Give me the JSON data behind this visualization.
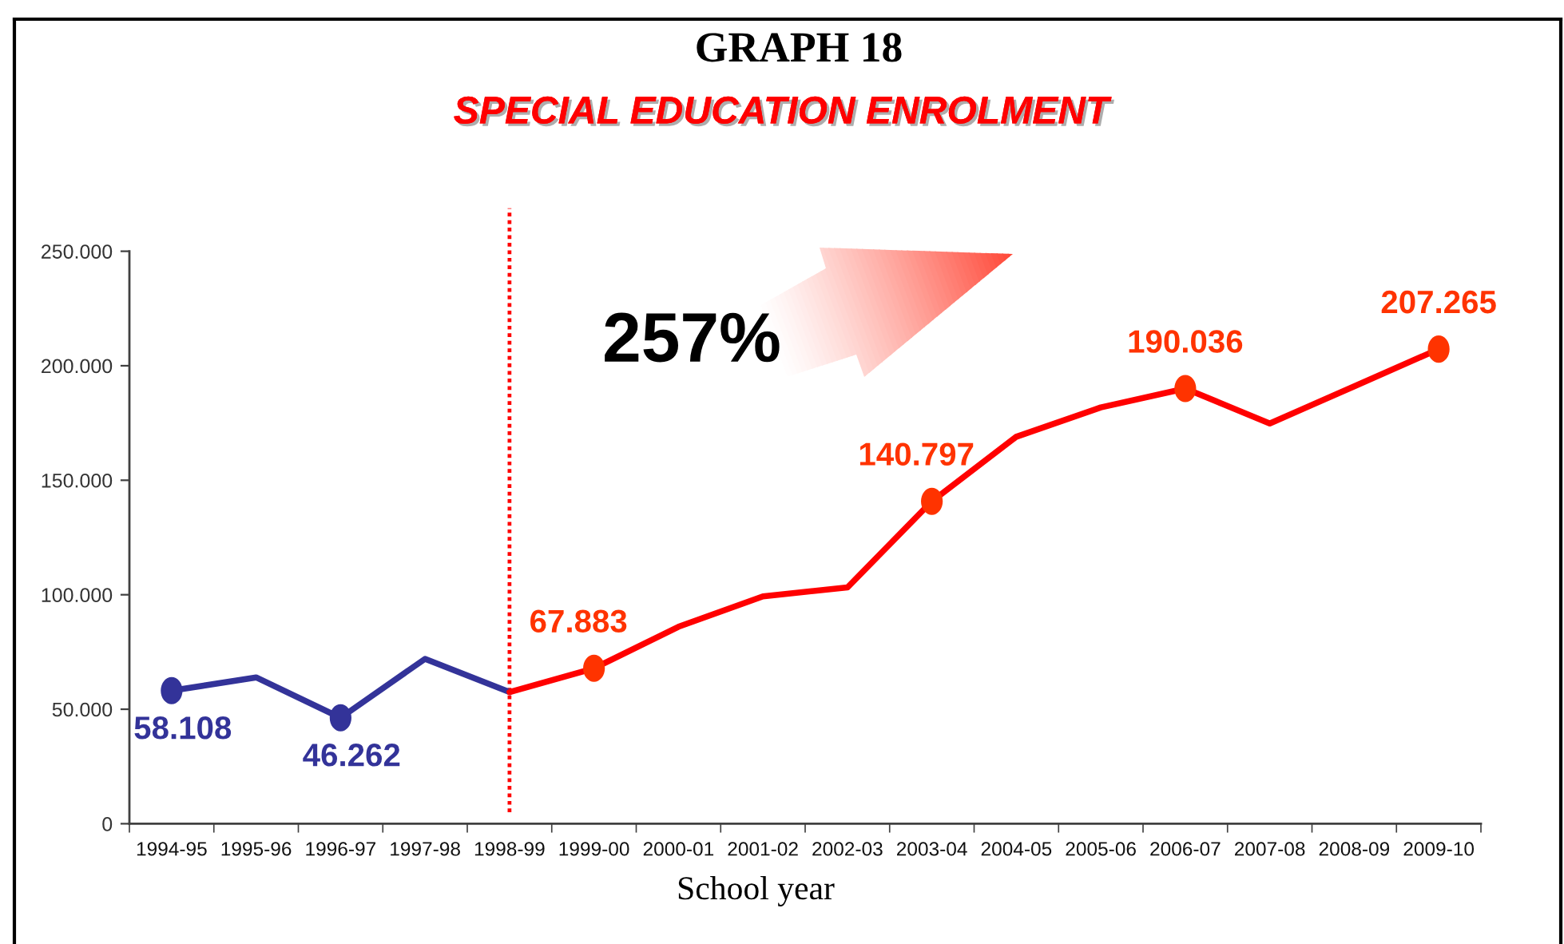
{
  "chart_data": {
    "type": "line",
    "title": "GRAPH 18",
    "subtitle": "SPECIAL EDUCATION ENROLMENT",
    "xlabel": "School year",
    "categories": [
      "1994-95",
      "1995-96",
      "1996-97",
      "1997-98",
      "1998-99",
      "1999-00",
      "2000-01",
      "2001-02",
      "2002-03",
      "2003-04",
      "2004-05",
      "2005-06",
      "2006-07",
      "2007-08",
      "2008-09",
      "2009-10"
    ],
    "series": [
      {
        "color": "#333399",
        "values": [
          58108,
          63900,
          46262,
          72000,
          57500,
          null,
          null,
          null,
          null,
          null,
          null,
          null,
          null,
          null,
          null,
          null
        ]
      },
      {
        "color": "#ff0000",
        "values": [
          null,
          null,
          null,
          null,
          57500,
          67883,
          86000,
          99300,
          103200,
          140797,
          169000,
          181800,
          190036,
          174800,
          191000,
          207265
        ]
      },
      {
        "type": "scatter",
        "color": "#333399",
        "marker": "circle",
        "values": [
          58108,
          null,
          46262,
          null,
          null,
          null,
          null,
          null,
          null,
          null,
          null,
          null,
          null,
          null,
          null,
          null
        ],
        "value_labels": [
          "58.108",
          null,
          "46.262",
          null,
          null,
          null,
          null,
          null,
          null,
          null,
          null,
          null,
          null,
          null,
          null,
          null
        ]
      },
      {
        "type": "scatter",
        "color": "#ff3300",
        "marker": "circle",
        "values": [
          null,
          null,
          null,
          null,
          null,
          67883,
          null,
          null,
          null,
          140797,
          null,
          null,
          190036,
          null,
          null,
          207265
        ],
        "value_labels": [
          null,
          null,
          null,
          null,
          null,
          "67.883",
          null,
          null,
          null,
          "140.797",
          null,
          null,
          "190.036",
          null,
          null,
          "207.265"
        ]
      }
    ],
    "ylim": [
      0,
      250000
    ],
    "yticks": [
      0,
      {
        "value": 50000,
        "label": "50.000"
      },
      {
        "value": 100000,
        "label": "100.000"
      },
      {
        "value": 150000,
        "label": "150.000"
      },
      {
        "value": 200000,
        "label": "200.000"
      },
      {
        "value": 250000,
        "label": "250.000"
      }
    ],
    "ref_lines": [
      {
        "axis": "x",
        "value": "1998-99",
        "color": "#ff0000",
        "line_style": "dotted"
      }
    ],
    "annotations": [
      "257%"
    ],
    "grid": false,
    "legend": false,
    "line_style": "solid"
  }
}
